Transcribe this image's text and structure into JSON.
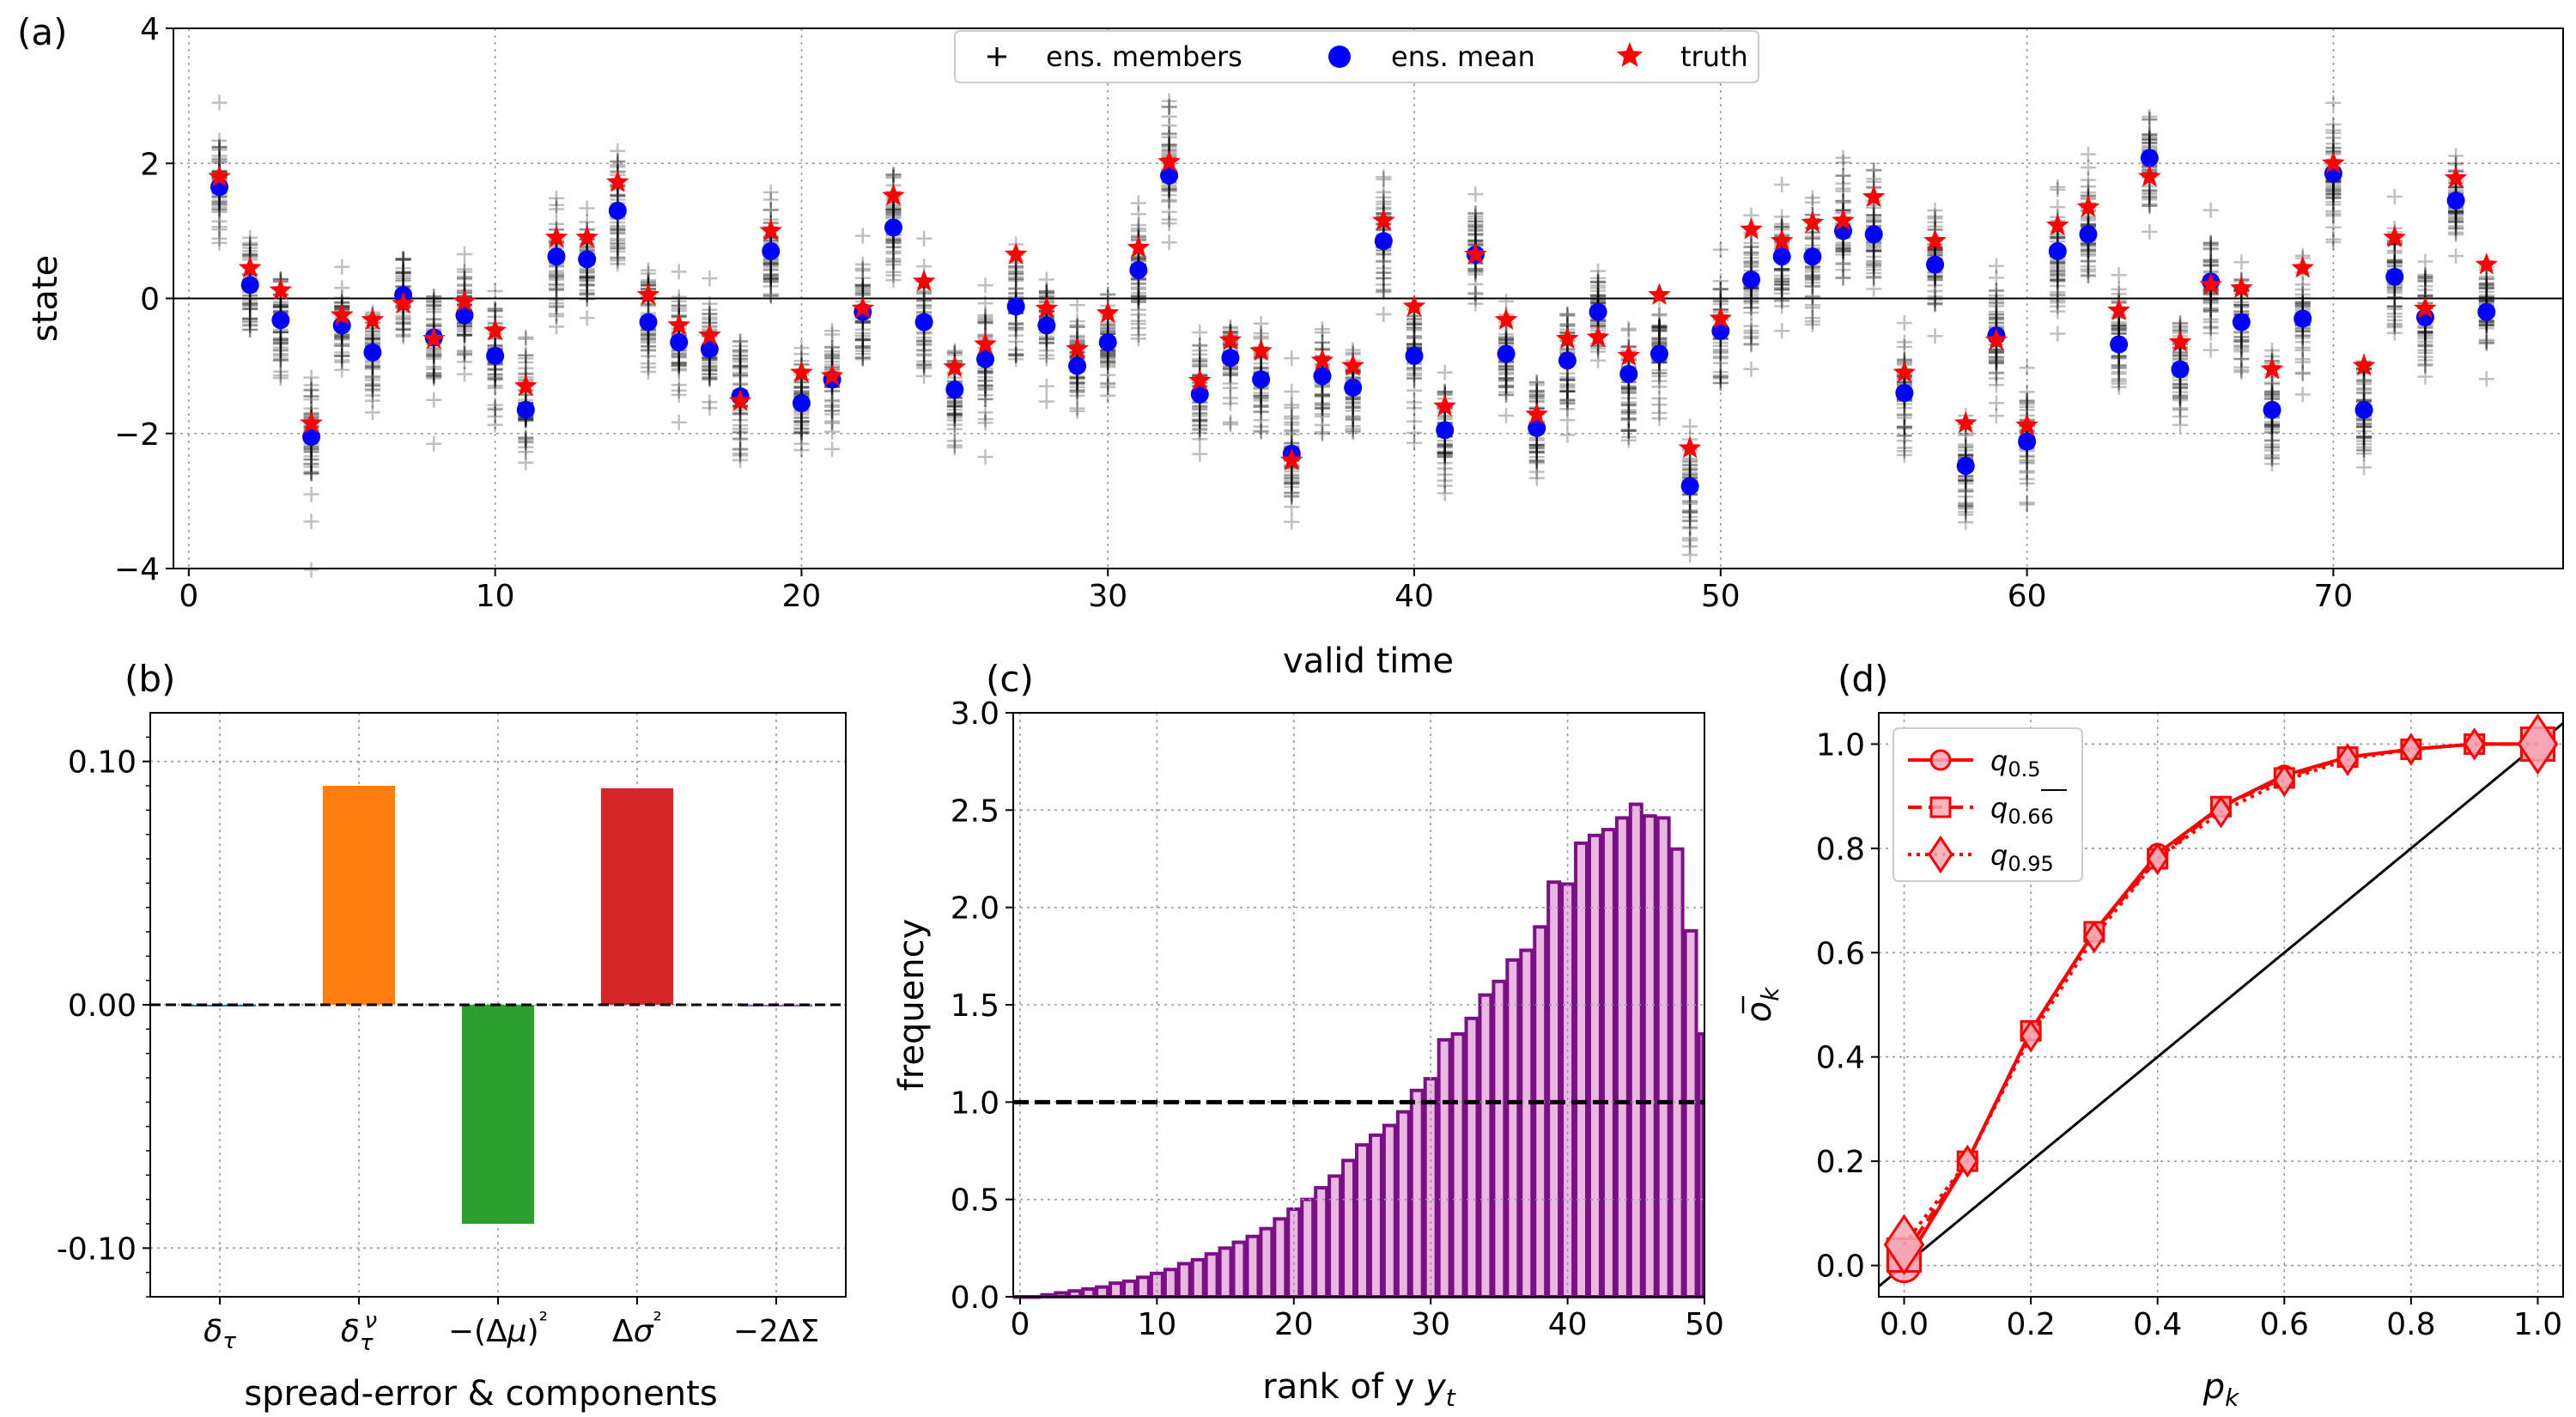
{
  "chart_data": [
    {
      "panel": "(a)",
      "type": "scatter",
      "xlabel": "valid time",
      "ylabel": "state",
      "xlim": [
        -0.5,
        77.5
      ],
      "ylim": [
        -4,
        4
      ],
      "xticks": [
        0,
        10,
        20,
        30,
        40,
        50,
        60,
        70
      ],
      "yticks": [
        -4,
        -2,
        0,
        2,
        4
      ],
      "grid": true,
      "legend": [
        "ens. members",
        "ens. mean",
        "truth"
      ],
      "legend_position": "top-center",
      "x": [
        1,
        2,
        3,
        4,
        5,
        6,
        7,
        8,
        9,
        10,
        11,
        12,
        13,
        14,
        15,
        16,
        17,
        18,
        19,
        20,
        21,
        22,
        23,
        24,
        25,
        26,
        27,
        28,
        29,
        30,
        31,
        32,
        33,
        34,
        35,
        36,
        37,
        38,
        39,
        40,
        41,
        42,
        43,
        44,
        45,
        46,
        47,
        48,
        49,
        50,
        51,
        52,
        53,
        54,
        55,
        56,
        57,
        58,
        59,
        60,
        61,
        62,
        63,
        64,
        65,
        66,
        67,
        68,
        69,
        70,
        71,
        72,
        73,
        74,
        75
      ],
      "ens_mean": [
        1.65,
        0.2,
        -0.32,
        -2.05,
        -0.4,
        -0.8,
        0.05,
        -0.58,
        -0.25,
        -0.85,
        -1.65,
        0.62,
        0.58,
        1.3,
        -0.35,
        -0.65,
        -0.75,
        -1.45,
        0.7,
        -1.55,
        -1.2,
        -0.2,
        1.05,
        -0.35,
        -1.35,
        -0.9,
        -0.12,
        -0.4,
        -1.0,
        -0.65,
        0.42,
        1.82,
        -1.42,
        -0.88,
        -1.2,
        -2.3,
        -1.15,
        -1.32,
        0.85,
        -0.85,
        -1.95,
        0.65,
        -0.82,
        -1.92,
        -0.92,
        -0.2,
        -1.12,
        -0.82,
        -2.78,
        -0.48,
        0.28,
        0.62,
        0.62,
        1.0,
        0.95,
        -1.4,
        0.5,
        -2.48,
        -0.55,
        -2.12,
        0.7,
        0.95,
        -0.68,
        2.08,
        -1.05,
        0.25,
        -0.35,
        -1.65,
        -0.3,
        1.85,
        -1.65,
        0.32,
        -0.28,
        1.45,
        -0.2
      ],
      "truth": [
        1.8,
        0.45,
        0.12,
        -1.85,
        -0.25,
        -0.32,
        -0.08,
        -0.6,
        -0.05,
        -0.48,
        -1.3,
        0.9,
        0.9,
        1.72,
        0.05,
        -0.4,
        -0.55,
        -1.52,
        1.0,
        -1.1,
        -1.15,
        -0.15,
        1.52,
        0.25,
        -1.02,
        -0.68,
        0.65,
        -0.15,
        -0.75,
        -0.22,
        0.75,
        2.02,
        -1.22,
        -0.62,
        -0.78,
        -2.4,
        -0.92,
        -1.0,
        1.15,
        -0.12,
        -1.6,
        0.65,
        -0.32,
        -1.72,
        -0.6,
        -0.58,
        -0.85,
        0.05,
        -2.22,
        -0.3,
        1.02,
        0.85,
        1.12,
        1.15,
        1.5,
        -1.1,
        0.85,
        -1.85,
        -0.62,
        -1.88,
        1.08,
        1.35,
        -0.18,
        1.8,
        -0.65,
        0.2,
        0.15,
        -1.05,
        0.45,
        2.0,
        -1.0,
        0.9,
        -0.15,
        1.78,
        0.5
      ],
      "ens_spread": [
        0.6,
        0.55,
        0.6,
        0.65,
        0.5,
        0.55,
        0.5,
        0.5,
        0.5,
        0.55,
        0.6,
        0.55,
        0.5,
        0.5,
        0.55,
        0.55,
        0.5,
        0.5,
        0.55,
        0.55,
        0.5,
        0.5,
        0.5,
        0.55,
        0.5,
        0.5,
        0.5,
        0.5,
        0.55,
        0.5,
        0.55,
        0.6,
        0.55,
        0.5,
        0.5,
        0.55,
        0.5,
        0.5,
        0.55,
        0.55,
        0.55,
        0.6,
        0.5,
        0.55,
        0.55,
        0.5,
        0.55,
        0.55,
        0.6,
        0.5,
        0.55,
        0.55,
        0.55,
        0.6,
        0.55,
        0.55,
        0.6,
        0.55,
        0.55,
        0.55,
        0.55,
        0.55,
        0.55,
        0.55,
        0.5,
        0.55,
        0.5,
        0.55,
        0.5,
        0.55,
        0.55,
        0.55,
        0.5,
        0.55,
        0.5
      ]
    },
    {
      "panel": "(b)",
      "type": "bar",
      "xlabel": "spread-error & components",
      "categories": [
        "δτ",
        "δτν",
        "−(Δμ)²",
        "Δσ²",
        "−2ΔΣ"
      ],
      "values": [
        0.0,
        0.09,
        -0.09,
        0.089,
        0.0
      ],
      "colors": [
        "#1f77b4",
        "#ff7f0e",
        "#2ca02c",
        "#d62728",
        "#9467bd"
      ],
      "ylim": [
        -0.12,
        0.12
      ],
      "yticks": [
        -0.1,
        0.0,
        0.1
      ],
      "ytick_labels": [
        "-0.10",
        "0.00",
        "0.10"
      ],
      "grid": true,
      "reference_line": 0.0
    },
    {
      "panel": "(c)",
      "type": "bar",
      "xlabel": "rank of y",
      "xlabel_sub": "t",
      "ylabel": "frequency",
      "xlim": [
        -0.5,
        50
      ],
      "ylim": [
        0,
        3.0
      ],
      "xticks": [
        0,
        10,
        20,
        30,
        40,
        50
      ],
      "yticks": [
        0.0,
        0.5,
        1.0,
        1.5,
        2.0,
        2.5,
        3.0
      ],
      "ytick_labels": [
        "0.0",
        "0.5",
        "1.0",
        "1.5",
        "2.0",
        "2.5",
        "3.0"
      ],
      "bar_color": "#e8b8e0",
      "edge_color": "#7b0f86",
      "reference_line": 1.0,
      "values": [
        0.0,
        0.0,
        0.01,
        0.02,
        0.03,
        0.04,
        0.05,
        0.07,
        0.08,
        0.1,
        0.12,
        0.14,
        0.17,
        0.19,
        0.22,
        0.25,
        0.28,
        0.31,
        0.35,
        0.4,
        0.45,
        0.5,
        0.56,
        0.62,
        0.7,
        0.78,
        0.83,
        0.88,
        0.95,
        1.06,
        1.12,
        1.32,
        1.35,
        1.43,
        1.55,
        1.62,
        1.73,
        1.78,
        1.9,
        2.13,
        2.12,
        2.33,
        2.37,
        2.4,
        2.46,
        2.53,
        2.47,
        2.46,
        2.3,
        1.88,
        1.35
      ]
    },
    {
      "panel": "(d)",
      "type": "line",
      "xlabel": "p",
      "xlabel_sub": "k",
      "ylabel": "o",
      "ylabel_sub": "k",
      "xlim": [
        -0.04,
        1.04
      ],
      "ylim": [
        -0.06,
        1.06
      ],
      "xticks": [
        0.0,
        0.2,
        0.4,
        0.6,
        0.8,
        1.0
      ],
      "yticks": [
        0.0,
        0.2,
        0.4,
        0.6,
        0.8,
        1.0
      ],
      "tick_labels": [
        "0.0",
        "0.2",
        "0.4",
        "0.6",
        "0.8",
        "1.0"
      ],
      "grid": true,
      "legend_position": "top-left",
      "x": [
        0.0,
        0.1,
        0.2,
        0.3,
        0.4,
        0.5,
        0.6,
        0.7,
        0.8,
        0.9,
        1.0
      ],
      "series": [
        {
          "name": "q",
          "sub": "0.5",
          "marker": "circle",
          "dash": "solid",
          "values": [
            0.0,
            0.2,
            0.45,
            0.64,
            0.79,
            0.88,
            0.94,
            0.975,
            0.99,
            1.0,
            1.0
          ]
        },
        {
          "name": "q",
          "sub": "0.66",
          "marker": "square",
          "dash": "dashed",
          "values": [
            0.02,
            0.2,
            0.45,
            0.64,
            0.78,
            0.88,
            0.935,
            0.975,
            0.99,
            1.0,
            1.0
          ]
        },
        {
          "name": "q",
          "sub": "0.95",
          "marker": "diamond",
          "dash": "dotted",
          "values": [
            0.04,
            0.2,
            0.44,
            0.63,
            0.78,
            0.87,
            0.93,
            0.97,
            0.99,
            1.0,
            1.0
          ]
        }
      ],
      "diagonal": true
    }
  ],
  "labels": {
    "a": "(a)",
    "b": "(b)",
    "c": "(c)",
    "d": "(d)"
  }
}
